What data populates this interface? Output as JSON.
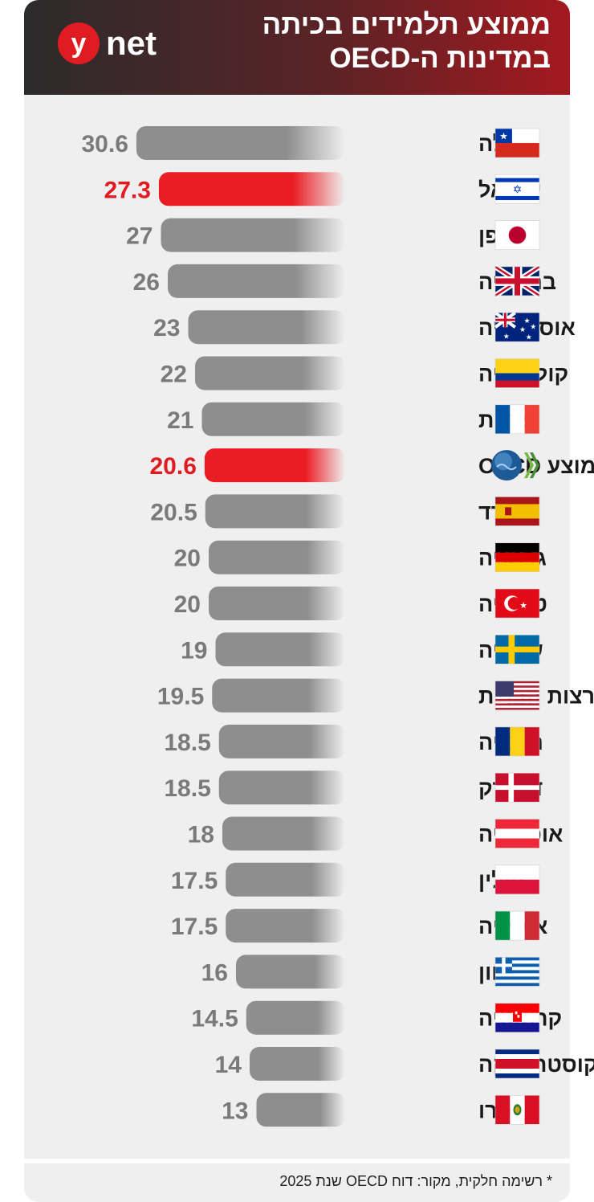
{
  "header": {
    "title_line1": "ממוצע תלמידים בכיתה",
    "title_line2": "במדינות ה-OECD",
    "logo_text": "ynet"
  },
  "footnote": "* רשימה חלקית, מקור: דוח OECD שנת 2025",
  "colors": {
    "default_bar": "#8e8e8e",
    "highlight_bar": "#ea1d25",
    "default_value": "#7a7a7a",
    "highlight_value": "#e11b22"
  },
  "chart_data": {
    "type": "bar",
    "orientation": "horizontal",
    "categories": [
      "צ׳ילה",
      "ישראל",
      "יפן",
      "בריטניה",
      "אוסטרליה",
      "קולומביה",
      "צרפת",
      "ממוצע OECD",
      "ספרד",
      "גרמניה",
      "טורקיה",
      "שבדיה",
      "ארצות הברית",
      "רומניה",
      "דנמרק",
      "אוסטריה",
      "פולין",
      "איטליה",
      "יוון",
      "קרואטיה",
      "קוסטה ריקה",
      "פרו"
    ],
    "values": [
      30.6,
      27.3,
      27,
      26,
      23,
      22,
      21,
      20.6,
      20.5,
      20,
      20,
      19,
      19.5,
      18.5,
      18.5,
      18,
      17.5,
      17.5,
      16,
      14.5,
      14,
      13
    ],
    "value_labels": [
      "30.6",
      "27.3",
      "27",
      "26",
      "23",
      "22",
      "21",
      "20.6",
      "20.5",
      "20",
      "20",
      "19",
      "19.5",
      "18.5",
      "18.5",
      "18",
      "17.5",
      "17.5",
      "16",
      "14.5",
      "14",
      "13"
    ],
    "highlighted": [
      "ישראל",
      "ממוצע OECD"
    ],
    "flag_icons": [
      "chile-flag-icon",
      "israel-flag-icon",
      "japan-flag-icon",
      "uk-flag-icon",
      "australia-flag-icon",
      "colombia-flag-icon",
      "france-flag-icon",
      "oecd-logo-icon",
      "spain-flag-icon",
      "germany-flag-icon",
      "turkey-flag-icon",
      "sweden-flag-icon",
      "usa-flag-icon",
      "romania-flag-icon",
      "denmark-flag-icon",
      "austria-flag-icon",
      "poland-flag-icon",
      "italy-flag-icon",
      "greece-flag-icon",
      "croatia-flag-icon",
      "costa-rica-flag-icon",
      "peru-flag-icon"
    ],
    "title": "ממוצע תלמידים בכיתה במדינות ה-OECD",
    "xlabel": "",
    "ylabel": "",
    "grid": false,
    "legend": "none"
  }
}
